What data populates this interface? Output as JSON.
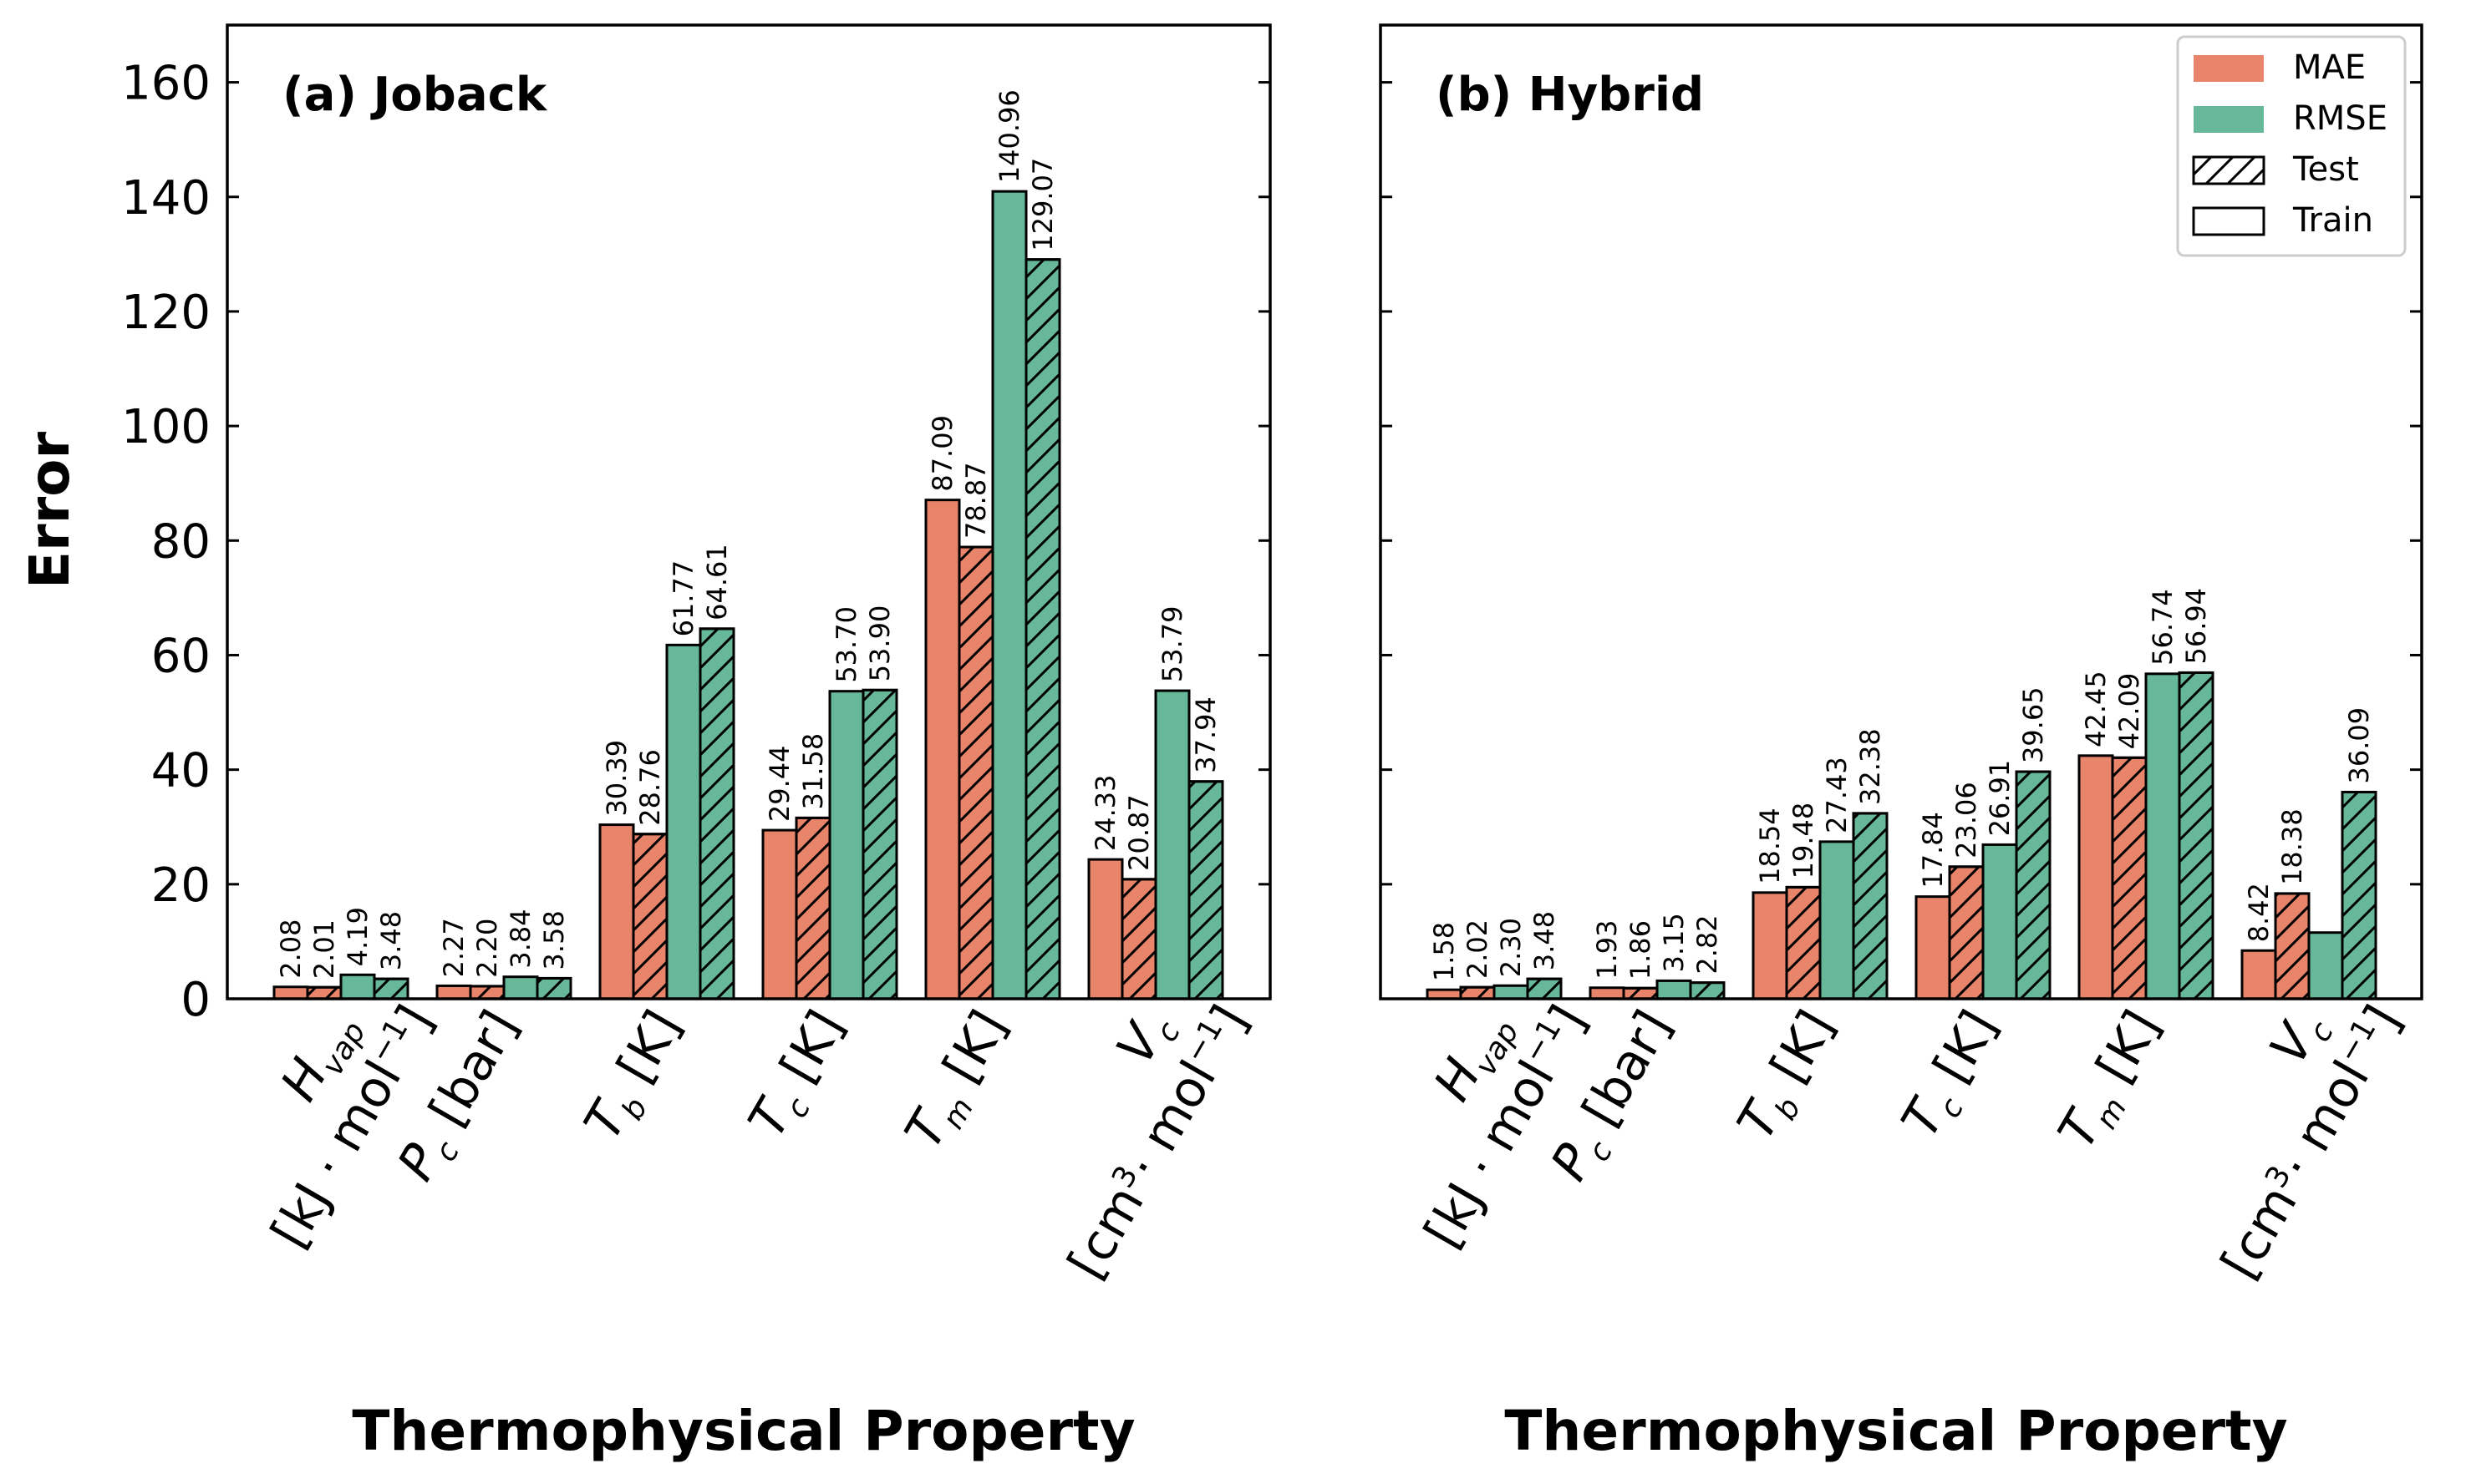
{
  "chart_data": {
    "type": "bar",
    "ylabel": "Error",
    "xlabel": "Thermophysical Property",
    "ylim": [
      0,
      170
    ],
    "yticks": [
      0,
      20,
      40,
      60,
      80,
      100,
      120,
      140,
      160
    ],
    "categories": [
      {
        "sym": "H",
        "sub": "vap",
        "line2": "[kJ · mol",
        "sup": "−1",
        "tail": "]"
      },
      {
        "sym": "P",
        "sub": "c",
        "unit": " [bar]"
      },
      {
        "sym": "T",
        "sub": "b",
        "unit": " [K]"
      },
      {
        "sym": "T",
        "sub": "c",
        "unit": " [K]"
      },
      {
        "sym": "T",
        "sub": "m",
        "unit": " [K]"
      },
      {
        "sym": "V",
        "sub": "c",
        "line2": "[cm",
        "sup": "3",
        "mid": "· mol",
        "sup2": "−1",
        "tail": "]"
      }
    ],
    "series": [
      {
        "name": "MAE",
        "split": "Train",
        "color": "#E8846A",
        "hatch": false
      },
      {
        "name": "MAE",
        "split": "Test",
        "color": "#E8846A",
        "hatch": true
      },
      {
        "name": "RMSE",
        "split": "Train",
        "color": "#66B899",
        "hatch": false
      },
      {
        "name": "RMSE",
        "split": "Test",
        "color": "#66B899",
        "hatch": true
      }
    ],
    "panels": [
      {
        "title": "(a) Joback",
        "values": [
          [
            2.08,
            2.01,
            4.19,
            3.48
          ],
          [
            2.27,
            2.2,
            3.84,
            3.58
          ],
          [
            30.39,
            28.76,
            61.77,
            64.61
          ],
          [
            29.44,
            31.58,
            53.7,
            53.9
          ],
          [
            87.09,
            78.87,
            140.96,
            129.07
          ],
          [
            24.33,
            20.87,
            53.79,
            37.94
          ]
        ],
        "labels": [
          [
            "2.08",
            "2.01",
            "4.19",
            "3.48"
          ],
          [
            "2.27",
            "2.20",
            "3.84",
            "3.58"
          ],
          [
            "30.39",
            "28.76",
            "61.77",
            "64.61"
          ],
          [
            "29.44",
            "31.58",
            "53.70",
            "53.90"
          ],
          [
            "87.09",
            "78.87",
            "140.96",
            "129.07"
          ],
          [
            "24.33",
            "20.87",
            "53.79",
            "37.94"
          ]
        ]
      },
      {
        "title": "(b) Hybrid",
        "values": [
          [
            1.58,
            2.02,
            2.3,
            3.48
          ],
          [
            1.93,
            1.86,
            3.15,
            2.82
          ],
          [
            18.54,
            19.48,
            27.43,
            32.38
          ],
          [
            17.84,
            23.06,
            26.91,
            39.65
          ],
          [
            42.45,
            42.09,
            56.74,
            56.94
          ],
          [
            8.42,
            18.38,
            11.56,
            36.09
          ]
        ],
        "labels": [
          [
            "1.58",
            "2.02",
            "2.30",
            "3.48"
          ],
          [
            "1.93",
            "1.86",
            "3.15",
            "2.82"
          ],
          [
            "18.54",
            "19.48",
            "27.43",
            "32.38"
          ],
          [
            "17.84",
            "23.06",
            "26.91",
            "39.65"
          ],
          [
            "42.45",
            "42.09",
            "56.74",
            "56.94"
          ],
          [
            "8.42",
            "18.38",
            "",
            "36.09"
          ]
        ]
      }
    ],
    "legend": {
      "position": "top-right",
      "entries": [
        {
          "label": "MAE",
          "color": "#E8846A",
          "hatch": false
        },
        {
          "label": "RMSE",
          "color": "#66B899",
          "hatch": false
        },
        {
          "label": "Test",
          "color": "#ffffff",
          "hatch": true
        },
        {
          "label": "Train",
          "color": "#ffffff",
          "hatch": false
        }
      ]
    }
  }
}
